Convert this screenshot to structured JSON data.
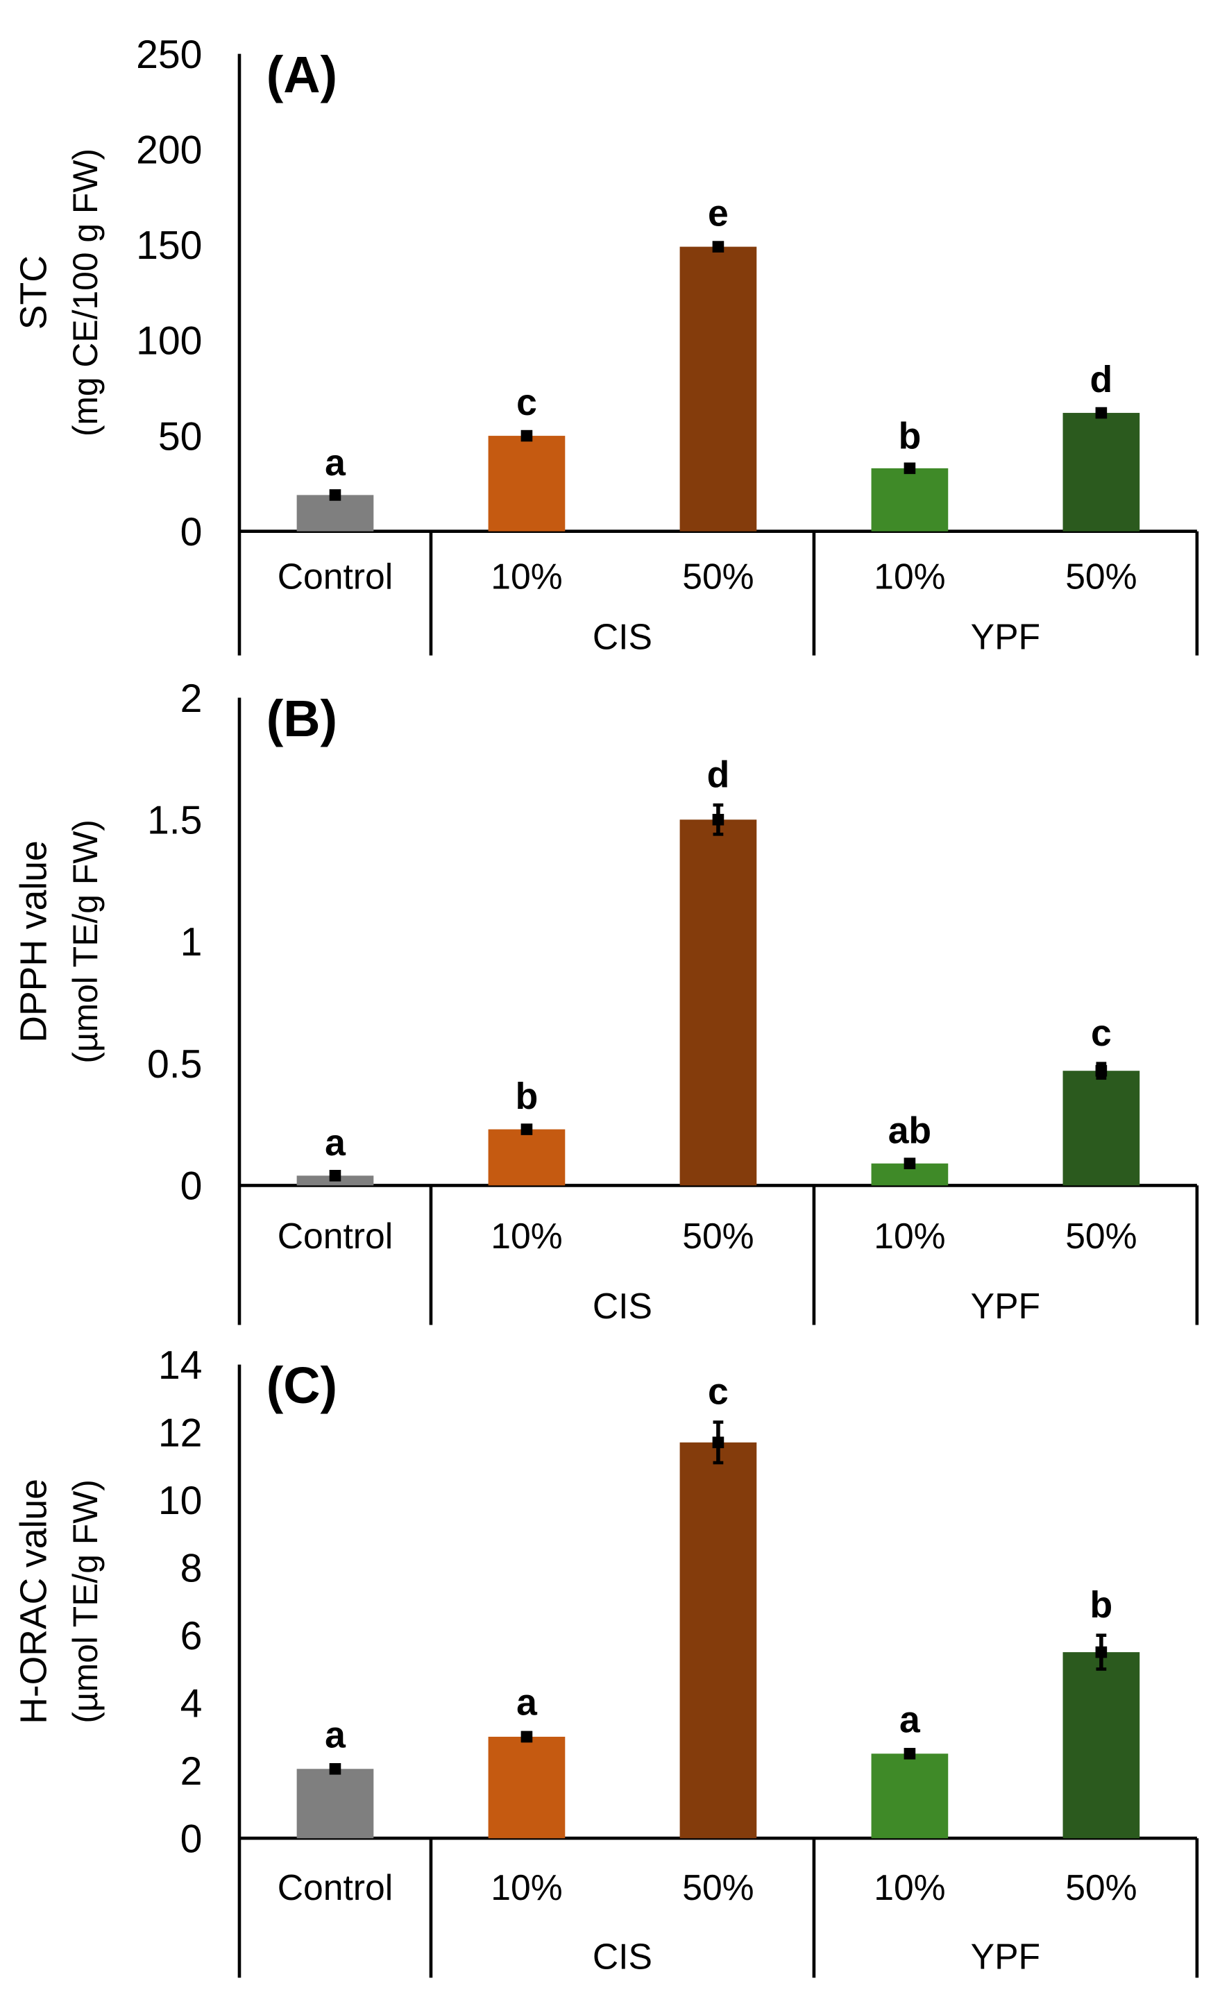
{
  "chart_data": [
    {
      "type": "bar",
      "panel_label": "(A)",
      "ylabel_lines": [
        "STC",
        "(mg CE/100 g FW)"
      ],
      "ylim": [
        0,
        250
      ],
      "yticks": [
        0,
        50,
        100,
        150,
        200,
        250
      ],
      "yticklabels": [
        "0",
        "50",
        "100",
        "150",
        "200",
        "250"
      ],
      "categories": [
        "Control",
        "10%",
        "50%",
        "10%",
        "50%"
      ],
      "groups": [
        {
          "label": "CIS",
          "span": [
            1,
            2
          ]
        },
        {
          "label": "YPF",
          "span": [
            3,
            4
          ]
        }
      ],
      "values": [
        19,
        50,
        149,
        33,
        62
      ],
      "errors": [
        1,
        1.5,
        1.5,
        1,
        1.5
      ],
      "letters": [
        "a",
        "c",
        "e",
        "b",
        "d"
      ]
    },
    {
      "type": "bar",
      "panel_label": "(B)",
      "ylabel_lines": [
        "DPPH value",
        "(µmol TE/g FW)"
      ],
      "ylim": [
        0,
        2
      ],
      "yticks": [
        0,
        0.5,
        1,
        1.5,
        2
      ],
      "yticklabels": [
        "0",
        "0.5",
        "1",
        "1.5",
        "2"
      ],
      "categories": [
        "Control",
        "10%",
        "50%",
        "10%",
        "50%"
      ],
      "groups": [
        {
          "label": "CIS",
          "span": [
            1,
            2
          ]
        },
        {
          "label": "YPF",
          "span": [
            3,
            4
          ]
        }
      ],
      "values": [
        0.04,
        0.23,
        1.5,
        0.09,
        0.47
      ],
      "errors": [
        0.01,
        0.01,
        0.06,
        0.01,
        0.03
      ],
      "letters": [
        "a",
        "b",
        "d",
        "ab",
        "c"
      ]
    },
    {
      "type": "bar",
      "panel_label": "(C)",
      "ylabel_lines": [
        "H-ORAC value",
        "(µmol TE/g FW)"
      ],
      "ylim": [
        0,
        14
      ],
      "yticks": [
        0,
        2,
        4,
        6,
        8,
        10,
        12,
        14
      ],
      "yticklabels": [
        "0",
        "2",
        "4",
        "6",
        "8",
        "10",
        "12",
        "14"
      ],
      "categories": [
        "Control",
        "10%",
        "50%",
        "10%",
        "50%"
      ],
      "groups": [
        {
          "label": "CIS",
          "span": [
            1,
            2
          ]
        },
        {
          "label": "YPF",
          "span": [
            3,
            4
          ]
        }
      ],
      "values": [
        2.05,
        3.0,
        11.7,
        2.5,
        5.5
      ],
      "errors": [
        0.1,
        0.12,
        0.6,
        0.1,
        0.5
      ],
      "letters": [
        "a",
        "a",
        "c",
        "a",
        "b"
      ]
    }
  ],
  "colors": [
    "#7f7f7f",
    "#c55a11",
    "#843c0c",
    "#3f8a28",
    "#2b5a1e"
  ]
}
